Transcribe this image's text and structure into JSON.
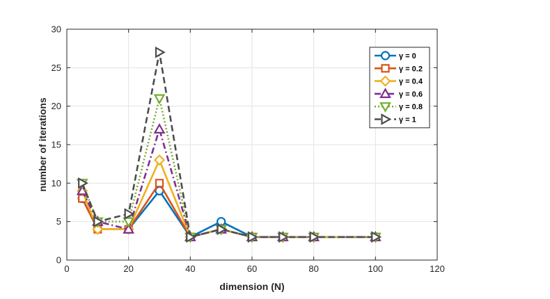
{
  "chart_data": {
    "type": "line",
    "title": "",
    "xlabel": "dimension (N)",
    "ylabel": "number of iterations",
    "xlim": [
      0,
      120
    ],
    "ylim": [
      0,
      30
    ],
    "xticks": [
      0,
      20,
      40,
      60,
      80,
      100,
      120
    ],
    "yticks": [
      0,
      5,
      10,
      15,
      20,
      25,
      30
    ],
    "grid": true,
    "legend_position": "top-right",
    "x": [
      5,
      10,
      20,
      30,
      40,
      50,
      60,
      70,
      80,
      100
    ],
    "series": [
      {
        "name": "γ = 0",
        "color": "#0072BD",
        "marker": "circle",
        "line_style": "solid",
        "values": [
          8,
          4,
          4,
          9,
          3,
          5,
          3,
          3,
          3,
          3
        ]
      },
      {
        "name": "γ = 0.2",
        "color": "#D95319",
        "marker": "square",
        "line_style": "solid",
        "values": [
          8,
          4,
          4,
          10,
          3,
          4,
          3,
          3,
          3,
          3
        ]
      },
      {
        "name": "γ = 0.4",
        "color": "#EDB120",
        "marker": "diamond",
        "line_style": "solid",
        "values": [
          9,
          4,
          4,
          13,
          3,
          4,
          3,
          3,
          3,
          3
        ]
      },
      {
        "name": "γ = 0.6",
        "color": "#7E2F8E",
        "marker": "triangle-up",
        "line_style": "dashdot",
        "values": [
          9,
          5,
          4,
          17,
          3,
          4,
          3,
          3,
          3,
          3
        ]
      },
      {
        "name": "γ = 0.8",
        "color": "#77AC30",
        "marker": "triangle-down",
        "line_style": "dotted",
        "values": [
          10,
          5,
          5,
          21,
          3,
          4,
          3,
          3,
          3,
          3
        ]
      },
      {
        "name": "γ = 1",
        "color": "#4D4D4D",
        "marker": "triangle-right",
        "line_style": "dashed",
        "values": [
          10,
          5,
          6,
          27,
          3,
          4,
          3,
          3,
          3,
          3
        ]
      }
    ]
  }
}
